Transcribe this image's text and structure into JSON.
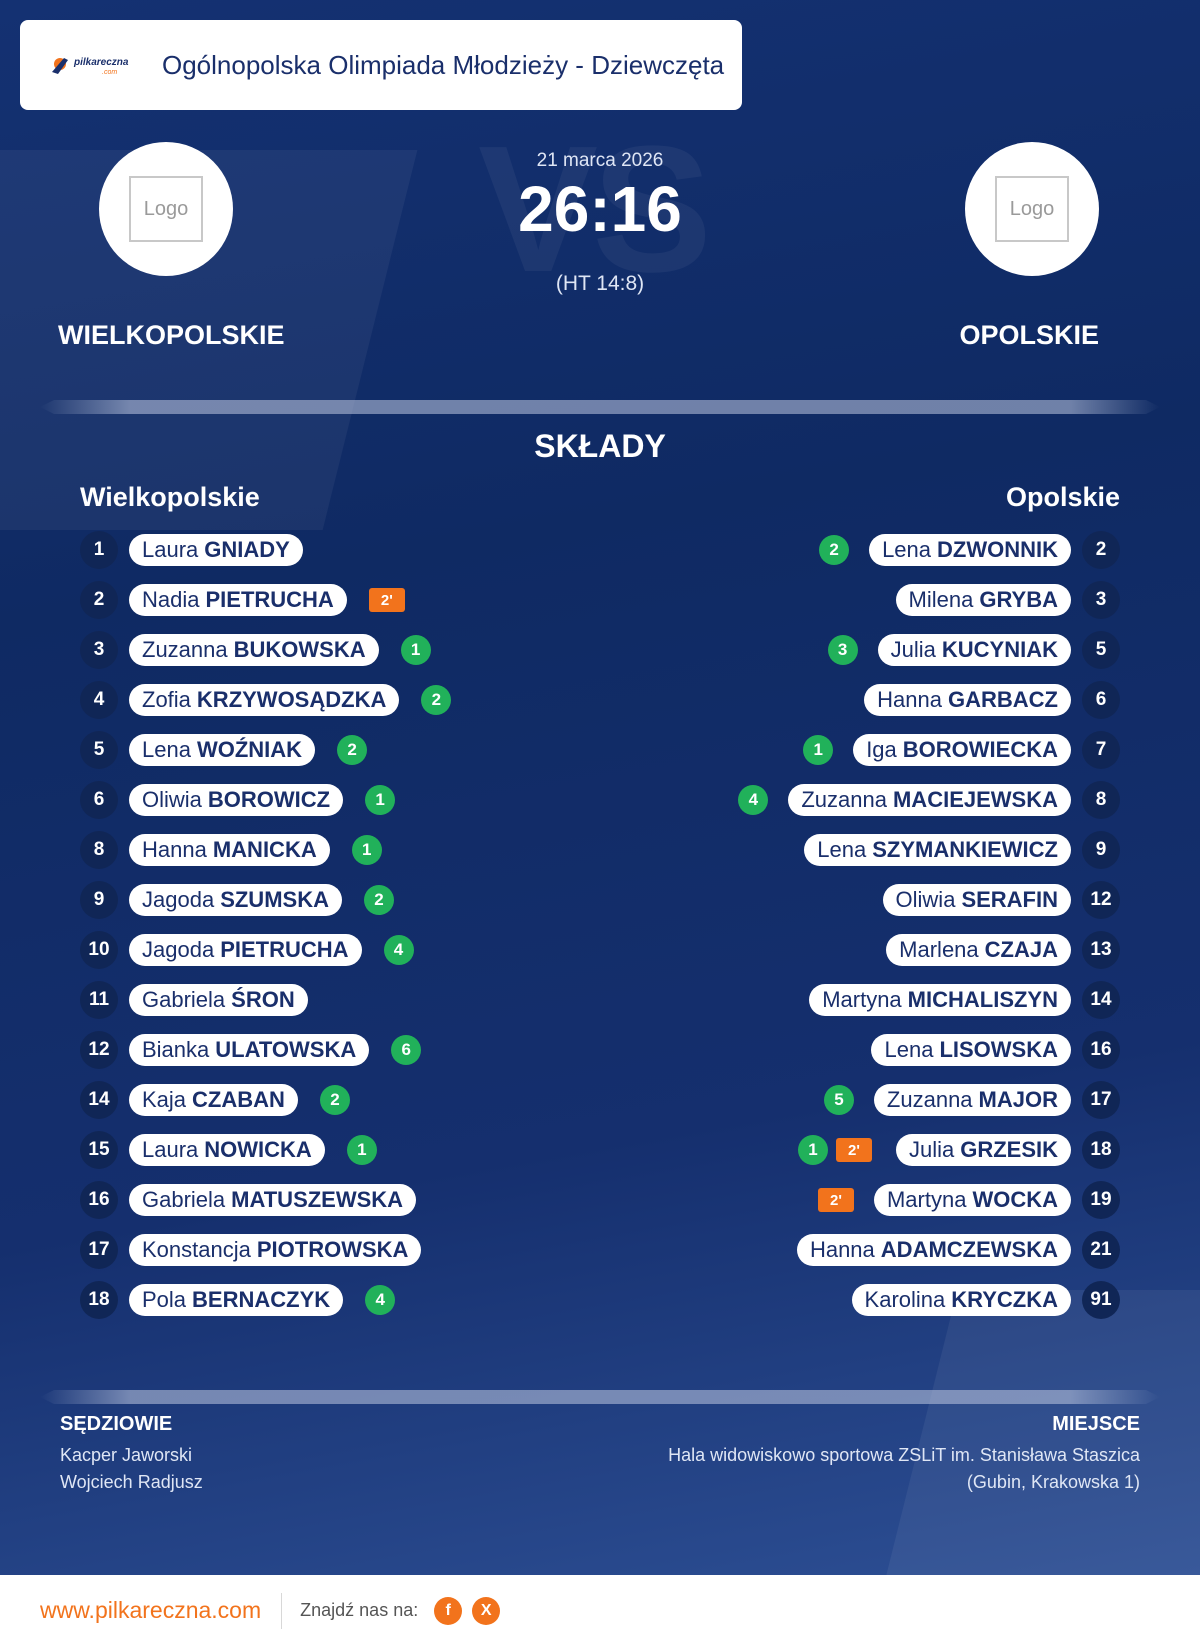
{
  "competition": {
    "title": "Ogólnopolska Olimpiada Młodzieży - Dziewczęta",
    "brand_logo_text": "pilkareczna .com"
  },
  "match": {
    "date": "21 marca 2026",
    "score": "26:16",
    "halftime": "(HT 14:8)",
    "vs_watermark": "VS",
    "home": {
      "name": "WIELKOPOLSKIE",
      "logo_placeholder": "Logo"
    },
    "away": {
      "name": "OPOLSKIE",
      "logo_placeholder": "Logo"
    }
  },
  "lineups": {
    "title": "SKŁADY",
    "home_title": "Wielkopolskie",
    "away_title": "Opolskie",
    "home": [
      {
        "number": "1",
        "first": "Laura",
        "last": "GNIADY",
        "goals": "",
        "penalty": ""
      },
      {
        "number": "2",
        "first": "Nadia",
        "last": "PIETRUCHA",
        "goals": "",
        "penalty": "2'"
      },
      {
        "number": "3",
        "first": "Zuzanna",
        "last": "BUKOWSKA",
        "goals": "1",
        "penalty": ""
      },
      {
        "number": "4",
        "first": "Zofia",
        "last": "KRZYWOSĄDZKA",
        "goals": "2",
        "penalty": ""
      },
      {
        "number": "5",
        "first": "Lena",
        "last": "WOŹNIAK",
        "goals": "2",
        "penalty": ""
      },
      {
        "number": "6",
        "first": "Oliwia",
        "last": "BOROWICZ",
        "goals": "1",
        "penalty": ""
      },
      {
        "number": "8",
        "first": "Hanna",
        "last": "MANICKA",
        "goals": "1",
        "penalty": ""
      },
      {
        "number": "9",
        "first": "Jagoda",
        "last": "SZUMSKA",
        "goals": "2",
        "penalty": ""
      },
      {
        "number": "10",
        "first": "Jagoda",
        "last": "PIETRUCHA",
        "goals": "4",
        "penalty": ""
      },
      {
        "number": "11",
        "first": "Gabriela",
        "last": "ŚRON",
        "goals": "",
        "penalty": ""
      },
      {
        "number": "12",
        "first": "Bianka",
        "last": "ULATOWSKA",
        "goals": "6",
        "penalty": ""
      },
      {
        "number": "14",
        "first": "Kaja",
        "last": "CZABAN",
        "goals": "2",
        "penalty": ""
      },
      {
        "number": "15",
        "first": "Laura",
        "last": "NOWICKA",
        "goals": "1",
        "penalty": ""
      },
      {
        "number": "16",
        "first": "Gabriela",
        "last": "MATUSZEWSKA",
        "goals": "",
        "penalty": ""
      },
      {
        "number": "17",
        "first": "Konstancja",
        "last": "PIOTROWSKA",
        "goals": "",
        "penalty": ""
      },
      {
        "number": "18",
        "first": "Pola",
        "last": "BERNACZYK",
        "goals": "4",
        "penalty": ""
      }
    ],
    "away": [
      {
        "number": "2",
        "first": "Lena",
        "last": "DZWONNIK",
        "goals": "2",
        "penalty": ""
      },
      {
        "number": "3",
        "first": "Milena",
        "last": "GRYBA",
        "goals": "",
        "penalty": ""
      },
      {
        "number": "5",
        "first": "Julia",
        "last": "KUCYNIAK",
        "goals": "3",
        "penalty": ""
      },
      {
        "number": "6",
        "first": "Hanna",
        "last": "GARBACZ",
        "goals": "",
        "penalty": ""
      },
      {
        "number": "7",
        "first": "Iga",
        "last": "BOROWIECKA",
        "goals": "1",
        "penalty": ""
      },
      {
        "number": "8",
        "first": "Zuzanna",
        "last": "MACIEJEWSKA",
        "goals": "4",
        "penalty": ""
      },
      {
        "number": "9",
        "first": "Lena",
        "last": "SZYMANKIEWICZ",
        "goals": "",
        "penalty": ""
      },
      {
        "number": "12",
        "first": "Oliwia",
        "last": "SERAFIN",
        "goals": "",
        "penalty": ""
      },
      {
        "number": "13",
        "first": "Marlena",
        "last": "CZAJA",
        "goals": "",
        "penalty": ""
      },
      {
        "number": "14",
        "first": "Martyna",
        "last": "MICHALISZYN",
        "goals": "",
        "penalty": ""
      },
      {
        "number": "16",
        "first": "Lena",
        "last": "LISOWSKA",
        "goals": "",
        "penalty": ""
      },
      {
        "number": "17",
        "first": "Zuzanna",
        "last": "MAJOR",
        "goals": "5",
        "penalty": ""
      },
      {
        "number": "18",
        "first": "Julia",
        "last": "GRZESIK",
        "goals": "1",
        "penalty": "2'"
      },
      {
        "number": "19",
        "first": "Martyna",
        "last": "WOCKA",
        "goals": "",
        "penalty": "2'"
      },
      {
        "number": "21",
        "first": "Hanna",
        "last": "ADAMCZEWSKA",
        "goals": "",
        "penalty": ""
      },
      {
        "number": "91",
        "first": "Karolina",
        "last": "KRYCZKA",
        "goals": "",
        "penalty": ""
      }
    ]
  },
  "officials": {
    "title": "SĘDZIOWIE",
    "referees": [
      "Kacper Jaworski",
      "Wojciech Radjusz"
    ]
  },
  "venue": {
    "title": "MIEJSCE",
    "lines": [
      "Hala widowiskowo sportowa ZSLiT im. Stanisława Staszica",
      "(Gubin, Krakowska 1)"
    ]
  },
  "footer": {
    "site": "www.pilkareczna.com",
    "find_us": "Znajdź nas na:",
    "social": [
      {
        "icon": "facebook-icon",
        "glyph": "f"
      },
      {
        "icon": "x-icon",
        "glyph": "X"
      }
    ]
  },
  "colors": {
    "background": "#0f2a63",
    "accent": "#f2731c",
    "goal_badge": "#21b15a",
    "text_dark": "#1a2f6b"
  }
}
